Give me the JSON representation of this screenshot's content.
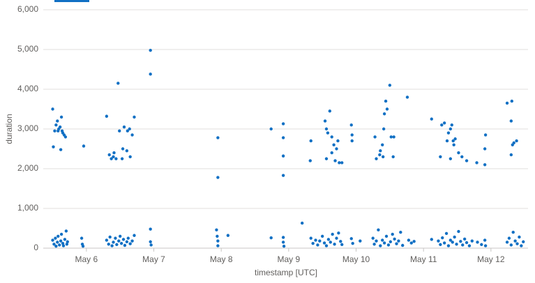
{
  "chart_data": {
    "type": "scatter",
    "xlabel": "timestamp [UTC]",
    "ylabel": "duration",
    "color": "#1170c4",
    "grid": true,
    "xlim": [
      5.36,
      12.55
    ],
    "xticks": [
      {
        "value": 6,
        "label": "May 6"
      },
      {
        "value": 7,
        "label": "May 7"
      },
      {
        "value": 8,
        "label": "May 8"
      },
      {
        "value": 9,
        "label": "May 9"
      },
      {
        "value": 10,
        "label": "May 10"
      },
      {
        "value": 11,
        "label": "May 11"
      },
      {
        "value": 12,
        "label": "May 12"
      }
    ],
    "ylim": [
      0,
      6000
    ],
    "yticks": [
      0,
      {
        "value": 1000,
        "label": "1,000"
      },
      {
        "value": 2000,
        "label": "2,000"
      },
      {
        "value": 3000,
        "label": "3,000"
      },
      {
        "value": 4000,
        "label": "4,000"
      },
      {
        "value": 5000,
        "label": "5,000"
      },
      {
        "value": 6000,
        "label": "6,000"
      }
    ],
    "x": [
      5.5,
      5.53,
      5.55,
      5.57,
      5.59,
      5.61,
      5.63,
      5.64,
      5.65,
      5.67,
      5.69,
      5.51,
      5.62,
      5.58,
      5.96,
      6.3,
      6.47,
      6.34,
      6.37,
      6.41,
      6.44,
      6.53,
      6.56,
      6.61,
      6.64,
      6.68,
      6.71,
      6.49,
      6.54,
      6.6,
      6.65,
      6.4,
      6.95,
      6.95,
      7.95,
      7.95,
      8.74,
      8.92,
      8.92,
      8.92,
      8.92,
      9.32,
      9.33,
      9.54,
      9.56,
      9.58,
      9.61,
      9.56,
      9.64,
      9.67,
      9.69,
      9.71,
      9.73,
      9.75,
      9.79,
      9.64,
      9.93,
      9.94,
      9.94,
      10.28,
      10.3,
      10.35,
      10.39,
      10.41,
      10.42,
      10.44,
      10.46,
      10.5,
      10.52,
      10.55,
      10.56,
      10.76,
      10.36,
      10.4,
      11.12,
      11.25,
      11.27,
      11.31,
      11.35,
      11.37,
      11.4,
      11.42,
      11.44,
      11.47,
      11.52,
      11.57,
      11.64,
      11.79,
      11.91,
      11.91,
      11.92,
      12.24,
      12.31,
      12.3,
      12.32,
      12.3,
      12.34,
      12.38,
      11.4,
      11.45,
      5.5,
      5.52,
      5.54,
      5.55,
      5.57,
      5.58,
      5.6,
      5.62,
      5.63,
      5.65,
      5.66,
      5.68,
      5.7,
      5.71,
      5.72,
      5.93,
      5.94,
      5.95,
      6.3,
      6.33,
      6.35,
      6.38,
      6.4,
      6.43,
      6.45,
      6.48,
      6.5,
      6.52,
      6.55,
      6.57,
      6.6,
      6.62,
      6.65,
      6.68,
      6.71,
      6.95,
      6.95,
      6.96,
      7.93,
      7.94,
      7.95,
      7.95,
      8.1,
      8.74,
      8.92,
      8.92,
      8.93,
      9.2,
      9.33,
      9.36,
      9.4,
      9.43,
      9.46,
      9.5,
      9.53,
      9.56,
      9.59,
      9.62,
      9.65,
      9.68,
      9.71,
      9.74,
      9.77,
      9.79,
      9.93,
      9.95,
      10.06,
      10.25,
      10.27,
      10.3,
      10.33,
      10.36,
      10.39,
      10.42,
      10.45,
      10.48,
      10.51,
      10.54,
      10.57,
      10.6,
      10.63,
      10.66,
      10.69,
      10.78,
      10.82,
      10.86,
      11.12,
      11.22,
      11.25,
      11.28,
      11.31,
      11.34,
      11.37,
      11.4,
      11.43,
      11.46,
      11.49,
      11.52,
      11.55,
      11.58,
      11.61,
      11.64,
      11.68,
      11.72,
      11.8,
      11.86,
      11.91,
      11.92,
      12.24,
      12.27,
      12.3,
      12.33,
      12.36,
      12.39,
      12.42,
      12.45,
      12.48
    ],
    "values": [
      3500,
      2950,
      3100,
      3200,
      3000,
      3050,
      3300,
      2950,
      2900,
      2850,
      2800,
      2550,
      2480,
      2950,
      2570,
      3320,
      4150,
      2350,
      2250,
      2400,
      2250,
      2250,
      3050,
      2950,
      3000,
      2850,
      3300,
      2950,
      2500,
      2450,
      2300,
      2300,
      4980,
      4380,
      2780,
      1780,
      3000,
      3130,
      2780,
      2320,
      1830,
      2200,
      2700,
      3200,
      3000,
      2900,
      3450,
      2250,
      2400,
      2600,
      2200,
      2500,
      2700,
      2150,
      2150,
      2800,
      3100,
      2850,
      2700,
      2800,
      2250,
      2350,
      2600,
      3000,
      3380,
      3700,
      3500,
      4100,
      2800,
      2300,
      2800,
      3800,
      2450,
      2300,
      3250,
      2300,
      3100,
      3150,
      2700,
      2900,
      2250,
      3100,
      2700,
      2750,
      2400,
      2300,
      2200,
      2150,
      2100,
      2500,
      2850,
      3650,
      3700,
      3200,
      2600,
      2350,
      2650,
      2700,
      3000,
      2600,
      200,
      100,
      250,
      50,
      150,
      300,
      80,
      180,
      350,
      120,
      60,
      220,
      430,
      100,
      160,
      250,
      100,
      50,
      200,
      100,
      280,
      60,
      150,
      250,
      90,
      180,
      300,
      120,
      220,
      70,
      160,
      250,
      110,
      180,
      320,
      480,
      160,
      80,
      460,
      300,
      180,
      60,
      320,
      260,
      270,
      150,
      50,
      630,
      250,
      120,
      200,
      80,
      180,
      300,
      130,
      60,
      220,
      150,
      350,
      100,
      250,
      380,
      170,
      90,
      240,
      120,
      180,
      250,
      100,
      180,
      460,
      60,
      200,
      130,
      300,
      80,
      160,
      350,
      230,
      110,
      180,
      400,
      70,
      200,
      130,
      170,
      220,
      180,
      90,
      260,
      130,
      370,
      60,
      200,
      150,
      280,
      100,
      420,
      170,
      80,
      230,
      140,
      60,
      180,
      150,
      90,
      200,
      60,
      150,
      250,
      80,
      400,
      180,
      110,
      280,
      60,
      160
    ]
  }
}
